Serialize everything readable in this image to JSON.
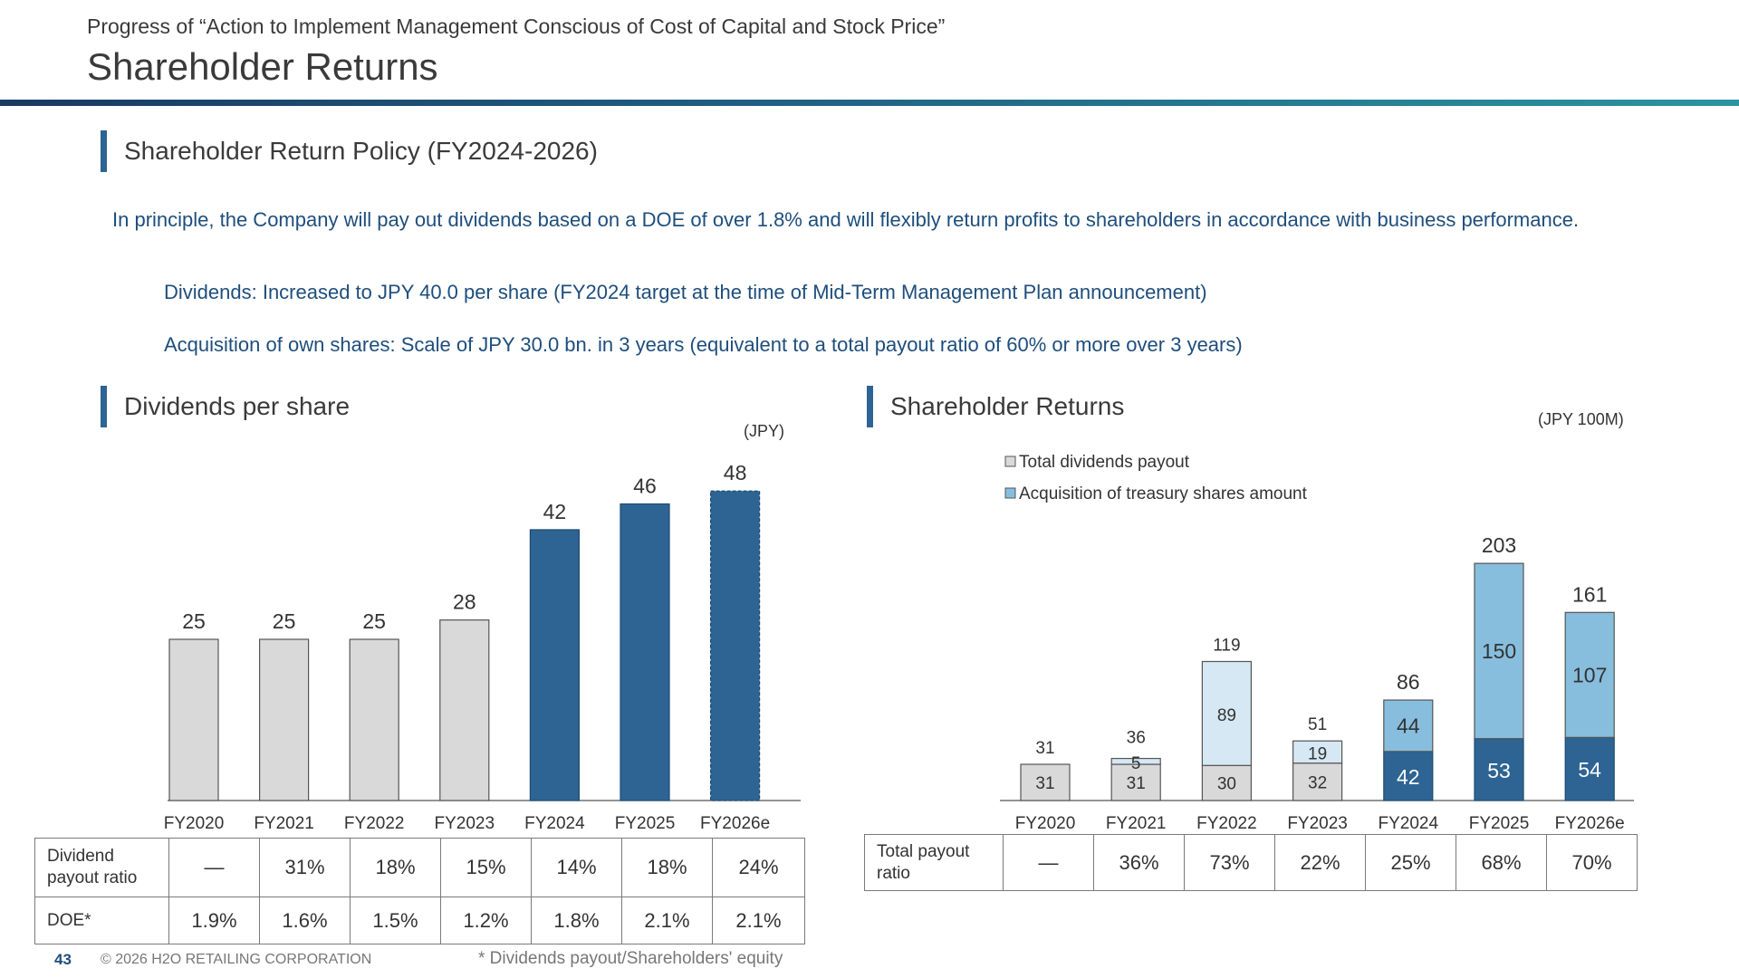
{
  "header": {
    "subtitle": "Progress of “Action to Implement Management Conscious of Cost of Capital and Stock Price”",
    "title": "Shareholder Returns"
  },
  "policy": {
    "section_title": "Shareholder Return Policy (FY2024-2026)",
    "paragraph": "In principle, the Company will pay out dividends based on a DOE of over 1.8% and will flexibly return profits to shareholders in accordance with business performance.",
    "items": [
      "Dividends: Increased to JPY 40.0 per share (FY2024 target at the time of Mid-Term Management Plan announcement)",
      "Acquisition of own shares: Scale of JPY 30.0 bn. in 3 years (equivalent to a total payout ratio of 60% or more over 3 years)"
    ]
  },
  "dividends_section": {
    "title": "Dividends per share",
    "unit": "(JPY)",
    "table": [
      {
        "label": "Dividend payout ratio",
        "values": [
          "—",
          "31%",
          "18%",
          "15%",
          "14%",
          "18%",
          "24%"
        ]
      },
      {
        "label": "DOE*",
        "values": [
          "1.9%",
          "1.6%",
          "1.5%",
          "1.2%",
          "1.8%",
          "2.1%",
          "2.1%"
        ]
      }
    ]
  },
  "returns_section": {
    "title": "Shareholder Returns",
    "unit": "(JPY 100M)",
    "table": [
      {
        "label": "Total payout ratio",
        "values": [
          "—",
          "36%",
          "73%",
          "22%",
          "25%",
          "68%",
          "70%"
        ]
      }
    ]
  },
  "chart_data": [
    {
      "type": "bar",
      "title": "Dividends per share",
      "categories": [
        "FY2020",
        "FY2021",
        "FY2022",
        "FY2023",
        "FY2024",
        "FY2025",
        "FY2026e"
      ],
      "values": [
        25,
        25,
        25,
        28,
        42,
        46,
        48
      ],
      "colors": {
        "before": "#d9d9d9",
        "after": "#2d6493"
      }
    },
    {
      "type": "bar",
      "stacked": true,
      "title": "Shareholder Returns",
      "categories": [
        "FY2020",
        "FY2021",
        "FY2022",
        "FY2023",
        "FY2024",
        "FY2025",
        "FY2026e"
      ],
      "series": [
        {
          "name": "Total dividends payout",
          "values": [
            31,
            31,
            30,
            32,
            42,
            53,
            54
          ]
        },
        {
          "name": "Acquisition of treasury shares amount",
          "values": [
            0,
            5,
            89,
            19,
            44,
            150,
            107
          ]
        }
      ],
      "totals": [
        31,
        36,
        119,
        51,
        86,
        203,
        161
      ],
      "legend": "top-left",
      "colors": {
        "grey": "#d9d9d9",
        "light_blue": "#d5e8f3",
        "mid_blue": "#87bedd",
        "dark_blue": "#2d6493"
      }
    }
  ],
  "footer": {
    "page_number": "43",
    "copyright": "© 2026 H2O RETAILING CORPORATION",
    "footnote": "* Dividends payout/Shareholders' equity"
  }
}
